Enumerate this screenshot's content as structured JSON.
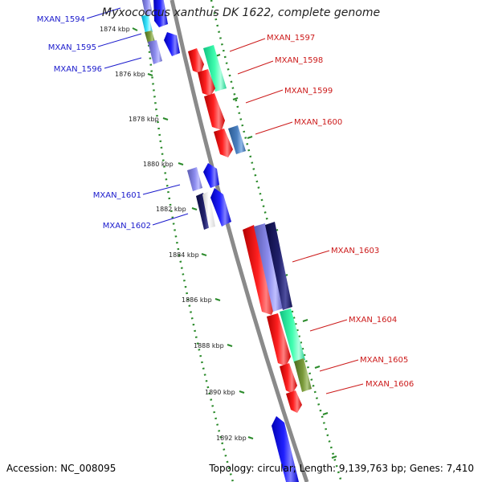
{
  "title": "Myxococcus xanthus DK 1622, complete genome",
  "footer": {
    "accession": "Accession: NC_008095",
    "stats": "Topology: circular; Length: 9,139,763 bp; Genes: 7,410"
  },
  "ticks": [
    "1874 kbp",
    "1876 kbp",
    "1878 kbp",
    "1880 kbp",
    "1882 kbp",
    "1884 kbp",
    "1886 kbp",
    "1888 kbp",
    "1890 kbp",
    "1892 kbp"
  ],
  "labels": {
    "left": [
      "MXAN_1594",
      "MXAN_1595",
      "MXAN_1596",
      "MXAN_1601",
      "MXAN_1602"
    ],
    "right": [
      "MXAN_1597",
      "MXAN_1598",
      "MXAN_1599",
      "MXAN_1600",
      "MXAN_1603",
      "MXAN_1604",
      "MXAN_1605",
      "MXAN_1606"
    ]
  },
  "colors": {
    "backbone": "#8a8a8a",
    "tick": "#2a8a2a",
    "left_label": "#1a1acc",
    "right_label": "#cc1a1a",
    "red": "#ff1a1a",
    "blue": "#1a1aff",
    "periwinkle": "#8080e6",
    "navy": "#1a1a66",
    "aquamarine": "#40ffb0",
    "olive": "#7a9a3a",
    "steelblue": "#4a7fbf",
    "cyan": "#20e0ff"
  }
}
